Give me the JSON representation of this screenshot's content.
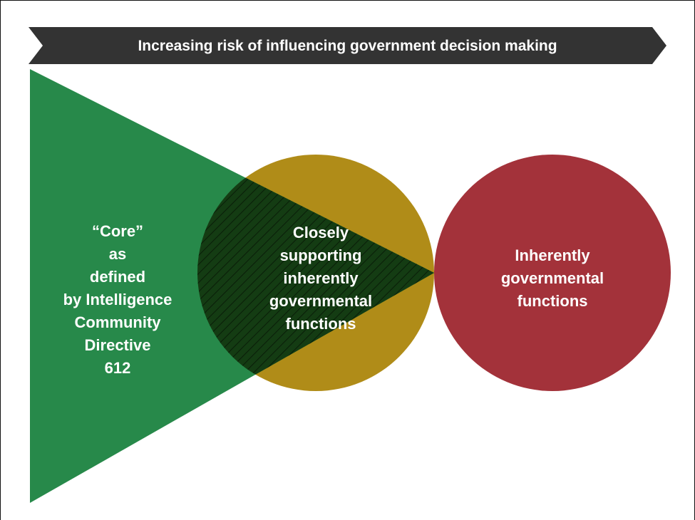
{
  "banner": {
    "text": "Increasing risk of influencing government decision making",
    "color": "#333333"
  },
  "core": {
    "label": "“Core”\nas\ndefined\nby Intelligence\nCommunity\nDirective\n612",
    "color": "#27894a"
  },
  "closely_supporting": {
    "label": "Closely\nsupporting\ninherently\ngovernmental\nfunctions",
    "color": "#b08c18",
    "overlap_color": "#143c13"
  },
  "inherently_governmental": {
    "label": "Inherently\ngovernmental\nfunctions",
    "color": "#a3323a"
  }
}
